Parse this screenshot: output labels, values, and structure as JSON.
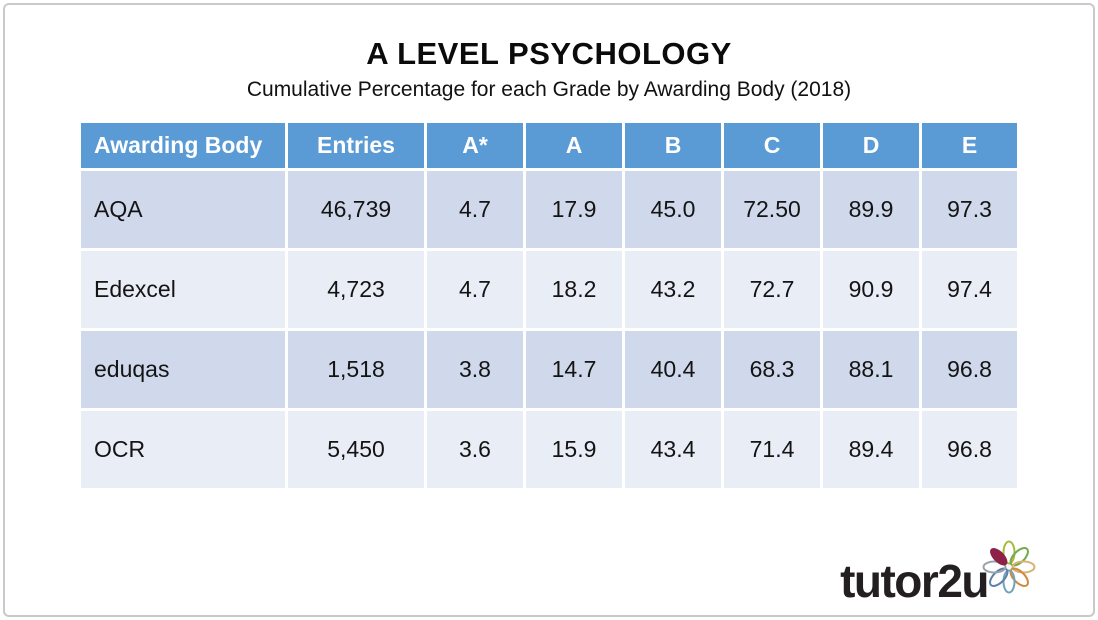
{
  "chart_data": {
    "type": "table",
    "title": "A LEVEL PSYCHOLOGY",
    "subtitle": "Cumulative Percentage for each Grade by Awarding Body (2018)",
    "columns": [
      "Awarding Body",
      "Entries",
      "A*",
      "A",
      "B",
      "C",
      "D",
      "E"
    ],
    "rows": [
      [
        "AQA",
        "46,739",
        "4.7",
        "17.9",
        "45.0",
        "72.50",
        "89.9",
        "97.3"
      ],
      [
        "Edexcel",
        "4,723",
        "4.7",
        "18.2",
        "43.2",
        "72.7",
        "90.9",
        "97.4"
      ],
      [
        "eduqas",
        "1,518",
        "3.8",
        "14.7",
        "40.4",
        "68.3",
        "88.1",
        "96.8"
      ],
      [
        "OCR",
        "5,450",
        "3.6",
        "15.9",
        "43.4",
        "71.4",
        "89.4",
        "96.8"
      ]
    ]
  },
  "logo": {
    "text_regular": "tutor",
    "text_bold": "2u",
    "petal_colors": [
      "#A9B93E",
      "#74A94E",
      "#D8B277",
      "#D2883E",
      "#6FA3BF",
      "#5E81A8",
      "#9AA2AB",
      "#8E2147"
    ],
    "filled_petal_index": 7
  },
  "colors": {
    "header_bg": "#5B9BD5",
    "row_odd": "#CFD9EB",
    "row_even": "#E9EDF6",
    "text": "#141414",
    "frame_border": "#C9C9C9",
    "logo_text": "#231F20"
  }
}
